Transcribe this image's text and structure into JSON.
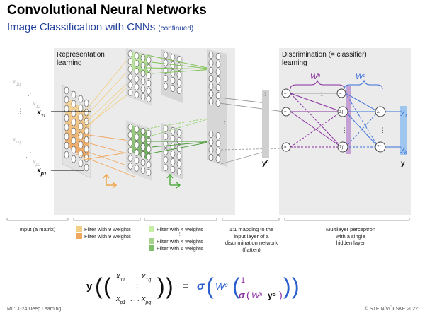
{
  "header": {
    "title": "Convolutional Neural Networks",
    "subtitle": "Image Classification with CNNs",
    "subtitle_note": "(continued)"
  },
  "panels": {
    "representation": "Representation learning",
    "discrimination": "Discrimination (= classifier) learning"
  },
  "input_labels": {
    "x1q": "x1q",
    "x12": "x12",
    "x11": "x11",
    "xpq": "xpq",
    "xp2": "xp2",
    "xp1": "xp1",
    "dots_v": "⋮",
    "dots_d": "⋰"
  },
  "network_labels": {
    "yc": "yc",
    "one_left": "1",
    "one_mid": "1",
    "Wh": "Wh",
    "Wo": "Wo",
    "y1": "y1",
    "yk": "yk",
    "y": "y",
    "sum_sym": "Σ∫"
  },
  "captions": {
    "input": "Input (a matrix)",
    "flatten": [
      "1:1 mapping to the",
      "input layer of a",
      "discrimination network",
      "(flatten)"
    ],
    "mlp": [
      "Multilayer perceptron",
      "with a single",
      "hidden layer"
    ]
  },
  "legend": {
    "orange": [
      {
        "label": "Filter with 9 weights",
        "color": "#f3cf86"
      },
      {
        "label": "Filter with 9 weights",
        "color": "#f0a860"
      }
    ],
    "green": [
      {
        "label": "Filter with 4 weights",
        "color": "#c6eda4"
      },
      {
        "label": "⋮",
        "color": ""
      },
      {
        "label": "Filter with 4 weights",
        "color": "#a6d48a"
      },
      {
        "label": "Filter with 6 weights",
        "color": "#7fbf6a"
      }
    ]
  },
  "formula": {
    "lhs_y": "y",
    "m_tl": "x11",
    "m_tr": "x1q",
    "m_mid": "⋮",
    "m_bl": "xp1",
    "m_br": "xpq",
    "m_dots": ". . .",
    "equals": "=",
    "sigma": "σ",
    "Wo": "Wo",
    "one": "1",
    "Wh": "Wh",
    "yc": "yc"
  },
  "footer": {
    "left": "ML:IX-24   Deep Learning",
    "right": "© STEIN/VÖLSKE 2022"
  },
  "colors": {
    "title_blue": "#1f3f9a",
    "orange": "#f0a040",
    "green": "#4caa3c",
    "purple": "#8a2fa0",
    "blue": "#3a6fd8",
    "panel": "#ebebeb"
  }
}
